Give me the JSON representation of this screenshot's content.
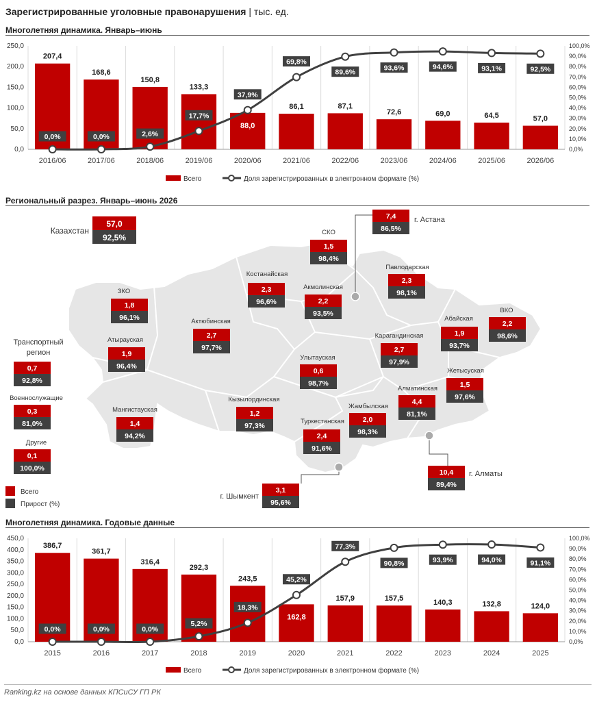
{
  "title": "Зарегистрированные уголовные правонарушения",
  "unit": "тыс. ед.",
  "sections": {
    "s1": "Многолетняя динамика. Январь–июнь",
    "s2": "Региональный разрез. Январь–июнь 2026",
    "s3": "Многолетняя динамика. Годовые данные"
  },
  "footer": "Ranking.kz на основе данных КПСиСУ ГП РК",
  "colors": {
    "bar": "#c00000",
    "line": "#404040",
    "dark_box": "#404040",
    "map": "#e6e6e6"
  },
  "chart_data": [
    {
      "type": "bar",
      "categories": [
        "2016/06",
        "2017/06",
        "2018/06",
        "2019/06",
        "2020/06",
        "2021/06",
        "2022/06",
        "2023/06",
        "2024/06",
        "2025/06",
        "2026/06"
      ],
      "series": [
        {
          "name": "Всего",
          "type": "bar",
          "axis": "left",
          "values": [
            207.4,
            168.6,
            150.8,
            133.3,
            88.0,
            86.1,
            87.1,
            72.6,
            69.0,
            64.5,
            57.0
          ],
          "labels": [
            "207,4",
            "168,6",
            "150,8",
            "133,3",
            "88,0",
            "86,1",
            "87,1",
            "72,6",
            "69,0",
            "64,5",
            "57,0"
          ]
        },
        {
          "name": "Доля зарегистрированных в электронном формате (%)",
          "type": "line",
          "axis": "right",
          "values": [
            0.0,
            0.0,
            2.6,
            17.7,
            37.9,
            69.8,
            89.6,
            93.6,
            94.6,
            93.1,
            92.5
          ],
          "labels": [
            "0,0%",
            "0,0%",
            "2,6%",
            "17,7%",
            "37,9%",
            "69,8%",
            "89,6%",
            "93,6%",
            "94,6%",
            "93,1%",
            "92,5%"
          ]
        }
      ],
      "ylim": [
        0,
        250
      ],
      "yticks": [
        "0,0",
        "50,0",
        "100,0",
        "150,0",
        "200,0",
        "250,0"
      ],
      "y2lim": [
        0,
        100
      ],
      "y2ticks": [
        "0,0%",
        "10,0%",
        "20,0%",
        "30,0%",
        "40,0%",
        "50,0%",
        "60,0%",
        "70,0%",
        "80,0%",
        "90,0%",
        "100,0%"
      ],
      "grid": true,
      "legend": "bottom"
    },
    {
      "type": "table",
      "description_legend": {
        "total": "Всего",
        "share": "Прирост (%)"
      },
      "regions": [
        {
          "name": "Казахстан",
          "total": "57,0",
          "share": "92,5%"
        },
        {
          "name": "г. Астана",
          "total": "7,4",
          "share": "86,5%"
        },
        {
          "name": "СКО",
          "total": "1,5",
          "share": "98,4%"
        },
        {
          "name": "Павлодарская",
          "total": "2,3",
          "share": "98,1%"
        },
        {
          "name": "Костанайская",
          "total": "2,3",
          "share": "96,6%"
        },
        {
          "name": "Акмолинская",
          "total": "2,2",
          "share": "93,5%"
        },
        {
          "name": "ЗКО",
          "total": "1,8",
          "share": "96,1%"
        },
        {
          "name": "ВКО",
          "total": "2,2",
          "share": "98,6%"
        },
        {
          "name": "Абайская",
          "total": "1,9",
          "share": "93,7%"
        },
        {
          "name": "Актюбинская",
          "total": "2,7",
          "share": "97,7%"
        },
        {
          "name": "Карагандинская",
          "total": "2,7",
          "share": "97,9%"
        },
        {
          "name": "Атырауская",
          "total": "1,9",
          "share": "96,4%"
        },
        {
          "name": "Улытауская",
          "total": "0,6",
          "share": "98,7%"
        },
        {
          "name": "Жетысуская",
          "total": "1,5",
          "share": "97,6%"
        },
        {
          "name": "Транспортный регион",
          "total": "0,7",
          "share": "92,8%"
        },
        {
          "name": "Алматинская",
          "total": "4,4",
          "share": "81,1%"
        },
        {
          "name": "Кызылординская",
          "total": "1,2",
          "share": "97,3%"
        },
        {
          "name": "Жамбылская",
          "total": "2,0",
          "share": "98,3%"
        },
        {
          "name": "Мангистауская",
          "total": "1,4",
          "share": "94,2%"
        },
        {
          "name": "Военнослужащие",
          "total": "0,3",
          "share": "81,0%"
        },
        {
          "name": "Туркестанская",
          "total": "2,4",
          "share": "91,6%"
        },
        {
          "name": "Другие",
          "total": "0,1",
          "share": "100,0%"
        },
        {
          "name": "г. Алматы",
          "total": "10,4",
          "share": "89,4%"
        },
        {
          "name": "г. Шымкент",
          "total": "3,1",
          "share": "95,6%"
        }
      ]
    },
    {
      "type": "bar",
      "categories": [
        "2015",
        "2016",
        "2017",
        "2018",
        "2019",
        "2020",
        "2021",
        "2022",
        "2023",
        "2024",
        "2025"
      ],
      "series": [
        {
          "name": "Всего",
          "type": "bar",
          "axis": "left",
          "values": [
            386.7,
            361.7,
            316.4,
            292.3,
            243.5,
            162.8,
            157.9,
            157.5,
            140.3,
            132.8,
            124.0
          ],
          "labels": [
            "386,7",
            "361,7",
            "316,4",
            "292,3",
            "243,5",
            "162,8",
            "157,9",
            "157,5",
            "140,3",
            "132,8",
            "124,0"
          ]
        },
        {
          "name": "Доля зарегистрированных в электронном формате (%)",
          "type": "line",
          "axis": "right",
          "values": [
            0.0,
            0.0,
            0.0,
            5.2,
            18.3,
            45.2,
            77.3,
            90.8,
            93.9,
            94.0,
            91.1
          ],
          "labels": [
            "0,0%",
            "0,0%",
            "0,0%",
            "5,2%",
            "18,3%",
            "45,2%",
            "77,3%",
            "90,8%",
            "93,9%",
            "94,0%",
            "91,1%"
          ]
        }
      ],
      "ylim": [
        0,
        450
      ],
      "yticks": [
        "0,0",
        "50,0",
        "100,0",
        "150,0",
        "200,0",
        "250,0",
        "300,0",
        "350,0",
        "400,0",
        "450,0"
      ],
      "y2lim": [
        0,
        100
      ],
      "y2ticks": [
        "0,0%",
        "10,0%",
        "20,0%",
        "30,0%",
        "40,0%",
        "50,0%",
        "60,0%",
        "70,0%",
        "80,0%",
        "90,0%",
        "100,0%"
      ],
      "grid": true,
      "legend": "bottom"
    }
  ]
}
